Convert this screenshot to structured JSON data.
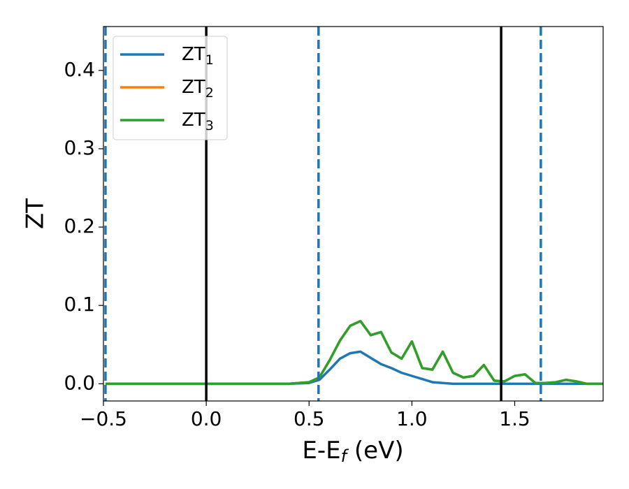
{
  "chart_data": {
    "type": "line",
    "xlabel": {
      "main": "E-E",
      "sub": "f",
      "rest": " (eV)"
    },
    "ylabel": "ZT",
    "x": [
      -0.49,
      0.0,
      0.4,
      0.5,
      0.55,
      0.6,
      0.65,
      0.7,
      0.75,
      0.8,
      0.85,
      0.9,
      0.95,
      1.0,
      1.05,
      1.1,
      1.15,
      1.2,
      1.25,
      1.3,
      1.35,
      1.4,
      1.45,
      1.5,
      1.55,
      1.6,
      1.65,
      1.7,
      1.75,
      1.8,
      1.85,
      1.93
    ],
    "series": [
      {
        "name": "ZT",
        "subscript": "1",
        "color": "#1f77b4",
        "values": [
          0,
          0,
          0,
          0.001,
          0.005,
          0.018,
          0.032,
          0.039,
          0.041,
          0.033,
          0.025,
          0.02,
          0.014,
          0.01,
          0.006,
          0.002,
          0.001,
          0,
          0,
          0,
          0,
          0,
          0,
          0,
          0,
          0,
          0,
          0,
          0,
          0,
          0,
          0
        ]
      },
      {
        "name": "ZT",
        "subscript": "2",
        "color": "#ff7f0e",
        "values": [
          0,
          0,
          0,
          0.002,
          0.008,
          0.03,
          0.055,
          0.074,
          0.08,
          0.062,
          0.066,
          0.04,
          0.032,
          0.054,
          0.02,
          0.018,
          0.041,
          0.014,
          0.008,
          0.01,
          0.024,
          0.004,
          0.003,
          0.01,
          0.012,
          0.001,
          0.001,
          0.002,
          0.005,
          0.003,
          0,
          0
        ]
      },
      {
        "name": "ZT",
        "subscript": "3",
        "color": "#2ca02c",
        "values": [
          0,
          0,
          0,
          0.002,
          0.008,
          0.03,
          0.055,
          0.074,
          0.08,
          0.062,
          0.066,
          0.04,
          0.032,
          0.054,
          0.02,
          0.018,
          0.041,
          0.014,
          0.008,
          0.01,
          0.024,
          0.004,
          0.003,
          0.01,
          0.012,
          0.001,
          0.001,
          0.002,
          0.005,
          0.003,
          0,
          0
        ]
      }
    ],
    "vlines": [
      {
        "x": -0.49,
        "color": "#1f77b4",
        "style": "dashed"
      },
      {
        "x": 0.0,
        "color": "#000000",
        "style": "solid"
      },
      {
        "x": 0.546,
        "color": "#1f77b4",
        "style": "dashed"
      },
      {
        "x": 1.434,
        "color": "#000000",
        "style": "solid"
      },
      {
        "x": 1.627,
        "color": "#1f77b4",
        "style": "dashed"
      }
    ],
    "xlim": [
      -0.5,
      1.93
    ],
    "ylim": [
      -0.022,
      0.456
    ],
    "xticks": [
      {
        "value": -0.5,
        "label": "−0.5"
      },
      {
        "value": 0,
        "label": "0.0"
      },
      {
        "value": 0.5,
        "label": "0.5"
      },
      {
        "value": 1,
        "label": "1.0"
      },
      {
        "value": 1.5,
        "label": "1.5"
      }
    ],
    "yticks": [
      {
        "value": 0,
        "label": "0.0"
      },
      {
        "value": 0.1,
        "label": "0.1"
      },
      {
        "value": 0.2,
        "label": "0.2"
      },
      {
        "value": 0.3,
        "label": "0.3"
      },
      {
        "value": 0.4,
        "label": "0.4"
      }
    ],
    "legend": "upper left",
    "grid": false
  }
}
